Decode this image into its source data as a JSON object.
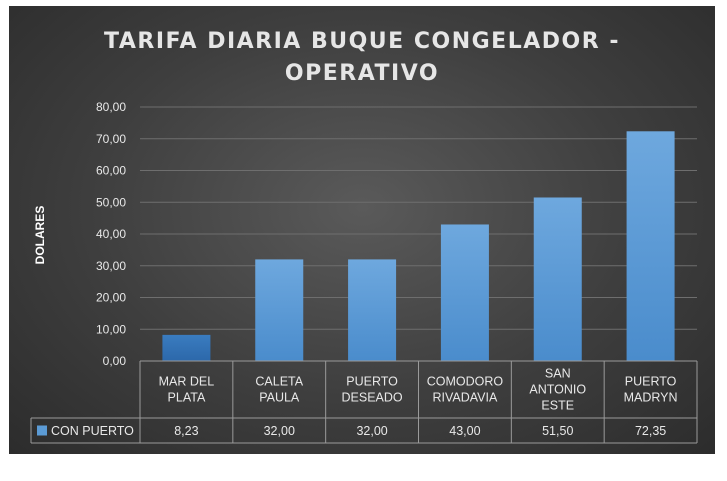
{
  "chart_data": {
    "type": "bar",
    "title_lines": [
      "TARIFA DIARIA BUQUE CONGELADOR -",
      "OPERATIVO"
    ],
    "ylabel": "DOLARES",
    "xlabel": "",
    "ylim": [
      0,
      80
    ],
    "y_ticks": [
      "0,00",
      "10,00",
      "20,00",
      "30,00",
      "40,00",
      "50,00",
      "60,00",
      "70,00",
      "80,00"
    ],
    "grid": true,
    "categories": [
      [
        "MAR DEL",
        "PLATA"
      ],
      [
        "CALETA",
        "PAULA"
      ],
      [
        "PUERTO",
        "DESEADO"
      ],
      [
        "COMODORO",
        "RIVADAVIA"
      ],
      [
        "SAN",
        "ANTONIO",
        "ESTE"
      ],
      [
        "PUERTO",
        "MADRYN"
      ]
    ],
    "series": [
      {
        "name": "CON PUERTO",
        "values": [
          8.23,
          32.0,
          32.0,
          43.0,
          51.5,
          72.35
        ],
        "value_labels": [
          "8,23",
          "32,00",
          "32,00",
          "43,00",
          "51,50",
          "72,35"
        ],
        "color": "#5b9bd5",
        "highlight_color": "#3f7fc0"
      }
    ],
    "data_table": true
  }
}
